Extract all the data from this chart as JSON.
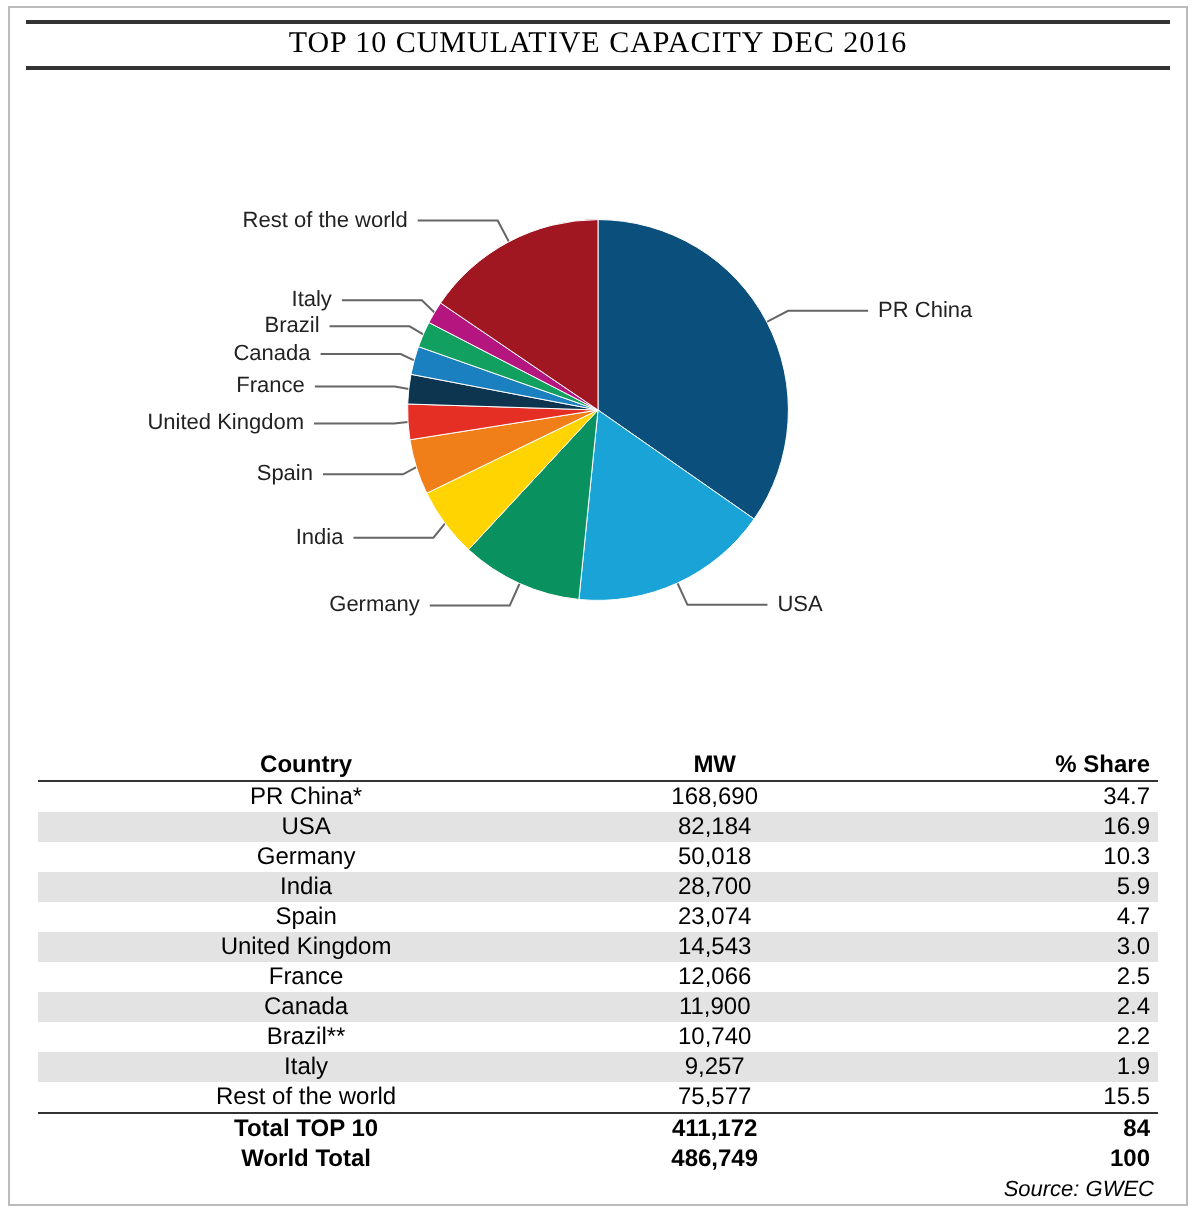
{
  "chart_data": {
    "type": "pie",
    "title": "TOP 10 CUMULATIVE CAPACITY DEC 2016",
    "categories": [
      "PR China",
      "USA",
      "Germany",
      "India",
      "Spain",
      "United Kingdom",
      "France",
      "Canada",
      "Brazil",
      "Italy",
      "Rest of the world"
    ],
    "values": [
      34.7,
      16.9,
      10.3,
      5.9,
      4.7,
      3.0,
      2.5,
      2.4,
      2.2,
      1.9,
      15.5
    ],
    "colors": [
      "#0b4f7c",
      "#1aa3d6",
      "#0a9160",
      "#ffd400",
      "#f07f1a",
      "#e52e24",
      "#0e3550",
      "#1a80c0",
      "#12a060",
      "#b5157f",
      "#a01722"
    ],
    "annotations": [
      "Country",
      "MW",
      "% Share",
      "PR China*",
      "USA",
      "Germany",
      "India",
      "Spain",
      "United Kingdom",
      "France",
      "Canada",
      "Brazil**",
      "Italy",
      "Rest of the world",
      "168,690",
      "82,184",
      "50,018",
      "28,700",
      "23,074",
      "14,543",
      "12,066",
      "11,900",
      "10,740",
      "9,257",
      "75,577",
      "34.7",
      "16.9",
      "10.3",
      "5.9",
      "4.7",
      "3.0",
      "2.5",
      "2.4",
      "2.2",
      "1.9",
      "15.5",
      "Total TOP 10",
      "411,172",
      "84",
      "World Total",
      "486,749",
      "100",
      "Source: GWEC"
    ]
  }
}
